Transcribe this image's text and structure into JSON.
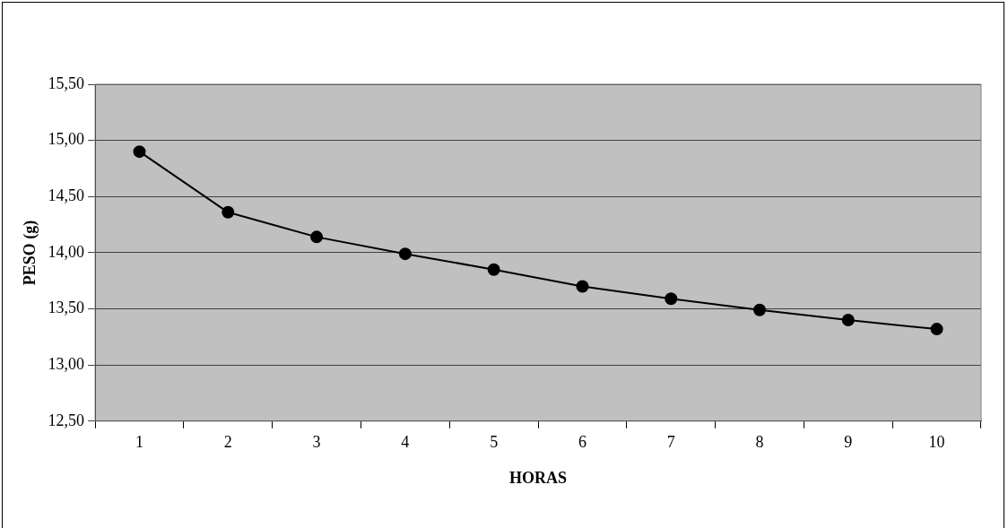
{
  "chart_data": {
    "type": "line",
    "xlabel": "HORAS",
    "ylabel": "PESO (g)",
    "categories": [
      "1",
      "2",
      "3",
      "4",
      "5",
      "6",
      "7",
      "8",
      "9",
      "10"
    ],
    "series": [
      {
        "color": "#000000",
        "values": [
          14.9,
          14.36,
          14.14,
          13.99,
          13.85,
          13.7,
          13.59,
          13.49,
          13.4,
          13.32
        ]
      }
    ],
    "ylim": [
      12.5,
      15.5
    ],
    "yticks": [
      {
        "value": 12.5,
        "label": "12,50"
      },
      {
        "value": 13,
        "label": "13,00"
      },
      {
        "value": 13.5,
        "label": "13,50"
      },
      {
        "value": 14,
        "label": "14,00"
      },
      {
        "value": 14.5,
        "label": "14,50"
      },
      {
        "value": 15,
        "label": "15,00"
      },
      {
        "value": 15.5,
        "label": "15,50"
      }
    ],
    "grid": "y",
    "legend": false,
    "marker": "circle",
    "line_style": "solid"
  }
}
